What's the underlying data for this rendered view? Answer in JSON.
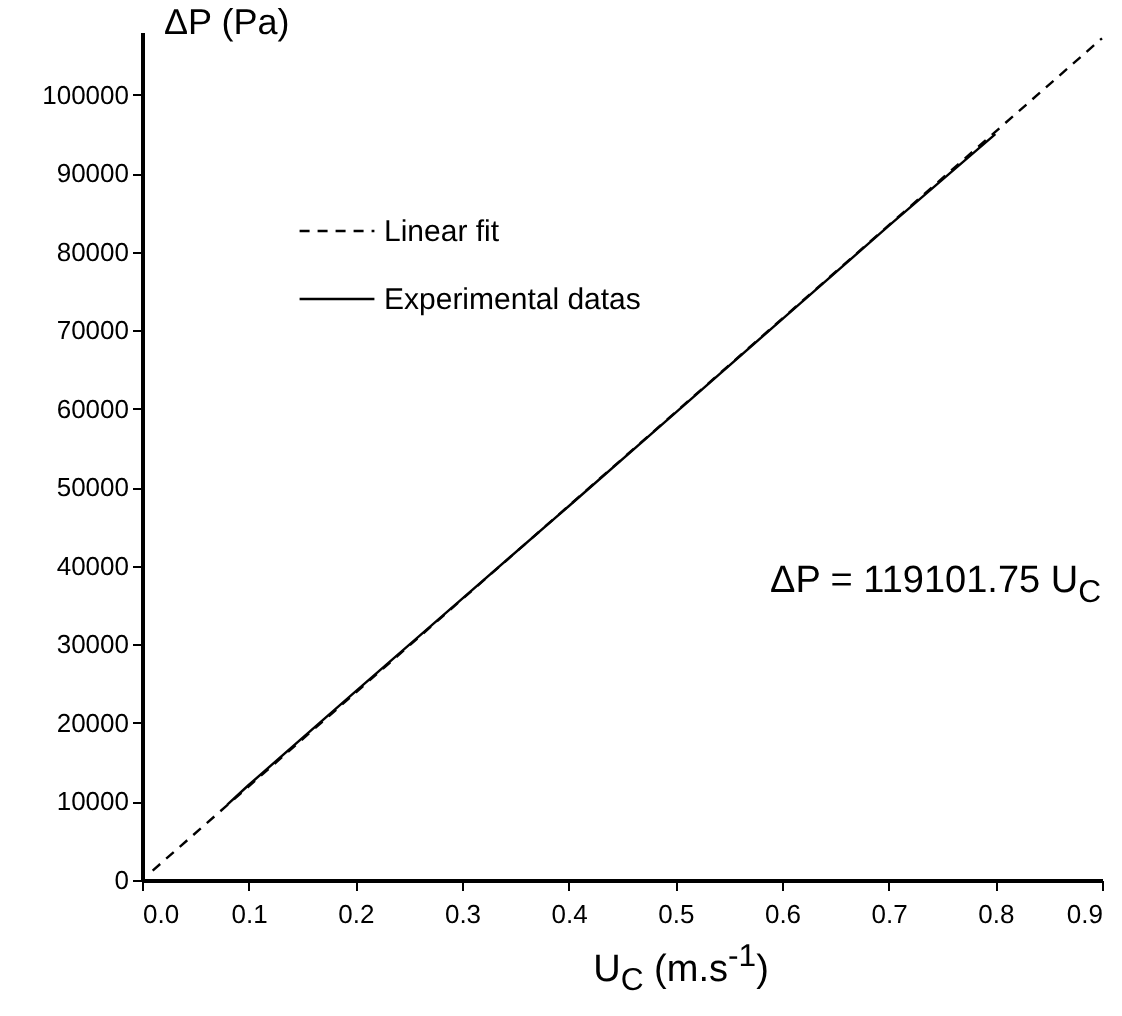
{
  "chart_data": {
    "type": "line",
    "xlabel": "U$_{C}$ (m.s$^{-1}$)",
    "ylabel": "ΔP (Pa)",
    "xlim": [
      0,
      0.9
    ],
    "ylim": [
      0,
      108000
    ],
    "xticks": [
      {
        "value": 0,
        "label": "0.0"
      },
      0.1,
      0.2,
      0.3,
      0.4,
      0.5,
      0.6,
      0.7,
      0.8,
      0.9
    ],
    "yticks": [
      0,
      10000,
      20000,
      30000,
      40000,
      50000,
      60000,
      70000,
      80000,
      90000,
      100000
    ],
    "legend": "top left",
    "annotations": [
      "ΔP = 119101.75 U$_{C}$"
    ],
    "series": [
      {
        "name": "Linear fit",
        "color": "#000000",
        "line_style": "dashed",
        "x": [
          0.01,
          0.9
        ],
        "values": [
          1200,
          107200
        ]
      },
      {
        "name": "Experimental datas",
        "color": "#000000",
        "line_style": "solid",
        "x": [
          0.08,
          0.1,
          0.2,
          0.3,
          0.4,
          0.5,
          0.6,
          0.7,
          0.8
        ],
        "values": [
          9600,
          12100,
          24000,
          35800,
          47600,
          59500,
          71400,
          83300,
          95000
        ]
      }
    ]
  }
}
